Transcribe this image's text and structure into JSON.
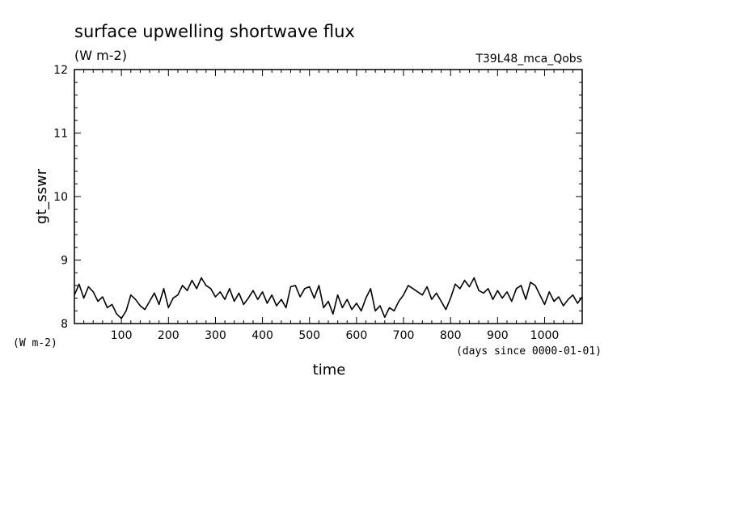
{
  "chart_data": {
    "type": "line",
    "title": "surface upwelling shortwave flux",
    "units": "(W m-2)",
    "experiment": "T39L48_mca_Qobs",
    "ylabel": "gt_sswr",
    "yunits_corner": "(W m-2)",
    "xlabel": "time",
    "xunits": "(days since 0000-01-01)",
    "xlim": [
      0,
      1080
    ],
    "ylim": [
      8,
      12
    ],
    "xticks": [
      100,
      200,
      300,
      400,
      500,
      600,
      700,
      800,
      900,
      1000
    ],
    "yticks": [
      8,
      9,
      10,
      11,
      12
    ],
    "grid": false,
    "series": [
      {
        "x": [
          0,
          10,
          20,
          30,
          40,
          50,
          60,
          70,
          80,
          90,
          100,
          110,
          120,
          130,
          140,
          150,
          160,
          170,
          180,
          190,
          200,
          210,
          220,
          230,
          240,
          250,
          260,
          270,
          280,
          290,
          300,
          310,
          320,
          330,
          340,
          350,
          360,
          370,
          380,
          390,
          400,
          410,
          420,
          430,
          440,
          450,
          460,
          470,
          480,
          490,
          500,
          510,
          520,
          530,
          540,
          550,
          560,
          570,
          580,
          590,
          600,
          610,
          620,
          630,
          640,
          650,
          660,
          670,
          680,
          690,
          700,
          710,
          720,
          730,
          740,
          750,
          760,
          770,
          780,
          790,
          800,
          810,
          820,
          830,
          840,
          850,
          860,
          870,
          880,
          890,
          900,
          910,
          920,
          930,
          940,
          950,
          960,
          970,
          980,
          990,
          1000,
          1010,
          1020,
          1030,
          1040,
          1050,
          1060,
          1070,
          1080
        ],
        "y": [
          8.45,
          8.62,
          8.4,
          8.58,
          8.5,
          8.35,
          8.42,
          8.25,
          8.3,
          8.15,
          8.08,
          8.2,
          8.45,
          8.38,
          8.28,
          8.22,
          8.35,
          8.48,
          8.3,
          8.55,
          8.25,
          8.4,
          8.45,
          8.6,
          8.52,
          8.68,
          8.55,
          8.72,
          8.6,
          8.55,
          8.42,
          8.5,
          8.38,
          8.55,
          8.35,
          8.48,
          8.3,
          8.4,
          8.52,
          8.38,
          8.5,
          8.32,
          8.45,
          8.28,
          8.38,
          8.25,
          8.58,
          8.6,
          8.42,
          8.55,
          8.58,
          8.4,
          8.6,
          8.25,
          8.35,
          8.15,
          8.45,
          8.25,
          8.38,
          8.22,
          8.32,
          8.2,
          8.4,
          8.55,
          8.2,
          8.28,
          8.1,
          8.25,
          8.2,
          8.35,
          8.45,
          8.6,
          8.55,
          8.5,
          8.45,
          8.58,
          8.38,
          8.48,
          8.35,
          8.22,
          8.4,
          8.62,
          8.55,
          8.68,
          8.58,
          8.72,
          8.52,
          8.48,
          8.55,
          8.38,
          8.52,
          8.4,
          8.5,
          8.35,
          8.55,
          8.6,
          8.38,
          8.65,
          8.6,
          8.45,
          8.3,
          8.5,
          8.35,
          8.42,
          8.28,
          8.38,
          8.45,
          8.32,
          8.42
        ]
      }
    ]
  }
}
